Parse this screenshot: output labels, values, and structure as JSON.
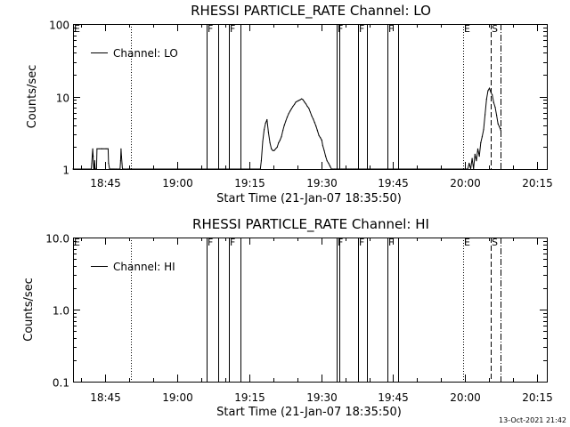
{
  "footer_timestamp": "13-Oct-2021 21:42",
  "chart_data": [
    {
      "type": "line",
      "title": "RHESSI PARTICLE_RATE Channel: LO",
      "xlabel": "Start Time (21-Jan-07 18:35:50)",
      "ylabel": "Counts/sec",
      "yscale": "log",
      "xlim": [
        18.6389,
        20.2833
      ],
      "ylim": [
        1,
        100
      ],
      "x_ticks": [
        {
          "v": 18.75,
          "label": "18:45"
        },
        {
          "v": 19.0,
          "label": "19:00"
        },
        {
          "v": 19.25,
          "label": "19:15"
        },
        {
          "v": 19.5,
          "label": "19:30"
        },
        {
          "v": 19.75,
          "label": "19:45"
        },
        {
          "v": 20.0,
          "label": "20:00"
        },
        {
          "v": 20.25,
          "label": "20:15"
        }
      ],
      "y_ticks": [
        {
          "v": 1,
          "label": "1"
        },
        {
          "v": 10,
          "label": "10"
        },
        {
          "v": 100,
          "label": "100"
        }
      ],
      "legend": "Channel: LO",
      "legend_position": "top-left",
      "flags": [
        {
          "x": 18.6389,
          "label": "E",
          "style": "none"
        },
        {
          "x": 18.8389,
          "label": "",
          "style": "dotted"
        },
        {
          "x": 19.1022,
          "label": "F",
          "style": "solid"
        },
        {
          "x": 19.1422,
          "label": "",
          "style": "solid"
        },
        {
          "x": 19.1806,
          "label": "F",
          "style": "solid"
        },
        {
          "x": 19.2189,
          "label": "",
          "style": "solid"
        },
        {
          "x": 19.5539,
          "label": "F",
          "style": "solid"
        },
        {
          "x": 19.5639,
          "label": "",
          "style": "solid"
        },
        {
          "x": 19.6289,
          "label": "F",
          "style": "solid"
        },
        {
          "x": 19.6589,
          "label": "",
          "style": "solid"
        },
        {
          "x": 19.7289,
          "label": "F",
          "style": "solid"
        },
        {
          "x": 19.7672,
          "label": "",
          "style": "solid"
        },
        {
          "x": 19.9922,
          "label": "E",
          "style": "dotted"
        },
        {
          "x": 20.0872,
          "label": "S",
          "style": "dashed"
        },
        {
          "x": 20.1239,
          "label": "",
          "style": "dashdot"
        }
      ],
      "series": [
        {
          "name": "Channel: LO",
          "x": [
            18.6389,
            18.7022,
            18.7039,
            18.7072,
            18.7089,
            18.7106,
            18.7122,
            18.7139,
            18.7156,
            18.7172,
            18.7206,
            18.7222,
            18.7289,
            18.7356,
            18.7389,
            18.7439,
            18.7506,
            18.7556,
            18.7606,
            18.7622,
            18.7656,
            18.7689,
            18.7722,
            18.7756,
            18.7789,
            18.7839,
            18.7889,
            18.8022,
            18.8039,
            18.8056,
            18.8072,
            18.8089,
            18.8106,
            18.8139,
            18.8289,
            18.8306,
            18.8322,
            18.8339,
            18.8356,
            18.8372,
            18.8389,
            19.2889,
            19.2922,
            19.2972,
            19.3022,
            19.3072,
            19.3122,
            19.3172,
            19.3222,
            19.3272,
            19.3322,
            19.3372,
            19.3422,
            19.3472,
            19.3522,
            19.3572,
            19.3622,
            19.3672,
            19.3722,
            19.3772,
            19.3822,
            19.3872,
            19.3922,
            19.3972,
            19.4022,
            19.4072,
            19.4122,
            19.4172,
            19.4222,
            19.4272,
            19.4322,
            19.4372,
            19.4422,
            19.4472,
            19.4522,
            19.4572,
            19.4622,
            19.4672,
            19.4722,
            19.4772,
            19.4822,
            19.4872,
            19.4922,
            19.4972,
            19.5022,
            19.5056,
            19.5106,
            19.5156,
            19.5206,
            19.5256,
            19.5306,
            19.5356,
            19.5406,
            19.5456,
            19.5506,
            19.5556,
            19.5606,
            19.5656,
            19.5706,
            19.5756,
            19.5806,
            19.5856,
            19.5906,
            19.5956,
            19.6006,
            19.6056,
            19.6106,
            19.6156,
            19.6206,
            19.6256,
            20.0089,
            20.0139,
            20.0189,
            20.0239,
            20.0289,
            20.0339,
            20.0389,
            20.0439,
            20.0489,
            20.0539,
            20.0589,
            20.0639,
            20.0689,
            20.0739,
            20.0789,
            20.0839,
            20.0889,
            20.0939,
            20.0989,
            20.1039,
            20.1089,
            20.1139,
            20.1189,
            20.1239
          ],
          "y": [
            1,
            1,
            1.2,
            1.9,
            1.5,
            1,
            1,
            1.3,
            1,
            1,
            1,
            1.9,
            1.9,
            1.9,
            1.9,
            1.9,
            1.9,
            1.9,
            1.9,
            1.2,
            1,
            1,
            1,
            1,
            1,
            1,
            1,
            1,
            1.3,
            1.9,
            1.5,
            1.2,
            1,
            1,
            1,
            1,
            1,
            1,
            1,
            1,
            1,
            1,
            1.3,
            2.4,
            3.5,
            4.3,
            4.8,
            3.2,
            2.3,
            1.9,
            1.8,
            1.8,
            1.9,
            2.0,
            2.3,
            2.5,
            2.8,
            3.4,
            4.0,
            4.6,
            5.2,
            5.8,
            6.3,
            6.8,
            7.3,
            7.8,
            8.4,
            8.6,
            8.8,
            9.0,
            9.3,
            9.0,
            8.4,
            7.9,
            7.3,
            6.9,
            6.1,
            5.4,
            4.9,
            4.4,
            3.9,
            3.4,
            2.9,
            2.7,
            2.5,
            2.1,
            1.8,
            1.5,
            1.3,
            1.2,
            1.1,
            1,
            1,
            1,
            1,
            1,
            1,
            1,
            1,
            1,
            1,
            1,
            1,
            1,
            1,
            1,
            1,
            1,
            1,
            1,
            1,
            1.2,
            1,
            1.4,
            1,
            1.6,
            1.3,
            1.9,
            1.5,
            2.3,
            2.8,
            3.5,
            5.6,
            9.2,
            12.0,
            13.0,
            11.5,
            10.5,
            8.3,
            7.1,
            5.5,
            4.2,
            3.8,
            3.4
          ]
        }
      ]
    },
    {
      "type": "line",
      "title": "RHESSI PARTICLE_RATE Channel: HI",
      "xlabel": "Start Time (21-Jan-07 18:35:50)",
      "ylabel": "Counts/sec",
      "yscale": "log",
      "xlim": [
        18.6389,
        20.2833
      ],
      "ylim": [
        0.1,
        10
      ],
      "x_ticks": [
        {
          "v": 18.75,
          "label": "18:45"
        },
        {
          "v": 19.0,
          "label": "19:00"
        },
        {
          "v": 19.25,
          "label": "19:15"
        },
        {
          "v": 19.5,
          "label": "19:30"
        },
        {
          "v": 19.75,
          "label": "19:45"
        },
        {
          "v": 20.0,
          "label": "20:00"
        },
        {
          "v": 20.25,
          "label": "20:15"
        }
      ],
      "y_ticks": [
        {
          "v": 0.1,
          "label": "0.1"
        },
        {
          "v": 1,
          "label": "1.0"
        },
        {
          "v": 10,
          "label": "10.0"
        }
      ],
      "legend": "Channel: HI",
      "legend_position": "top-left",
      "flags": [
        {
          "x": 18.6389,
          "label": "E",
          "style": "none"
        },
        {
          "x": 18.8389,
          "label": "",
          "style": "dotted"
        },
        {
          "x": 19.1022,
          "label": "F",
          "style": "solid"
        },
        {
          "x": 19.1422,
          "label": "",
          "style": "solid"
        },
        {
          "x": 19.1806,
          "label": "F",
          "style": "solid"
        },
        {
          "x": 19.2189,
          "label": "",
          "style": "solid"
        },
        {
          "x": 19.5539,
          "label": "F",
          "style": "solid"
        },
        {
          "x": 19.5639,
          "label": "",
          "style": "solid"
        },
        {
          "x": 19.6289,
          "label": "F",
          "style": "solid"
        },
        {
          "x": 19.6589,
          "label": "",
          "style": "solid"
        },
        {
          "x": 19.7289,
          "label": "F",
          "style": "solid"
        },
        {
          "x": 19.7672,
          "label": "",
          "style": "solid"
        },
        {
          "x": 19.9922,
          "label": "E",
          "style": "dotted"
        },
        {
          "x": 20.0872,
          "label": "S",
          "style": "dashed"
        },
        {
          "x": 20.1239,
          "label": "",
          "style": "dashdot"
        }
      ],
      "series": [
        {
          "name": "Channel: HI",
          "x": [],
          "y": []
        }
      ]
    }
  ]
}
